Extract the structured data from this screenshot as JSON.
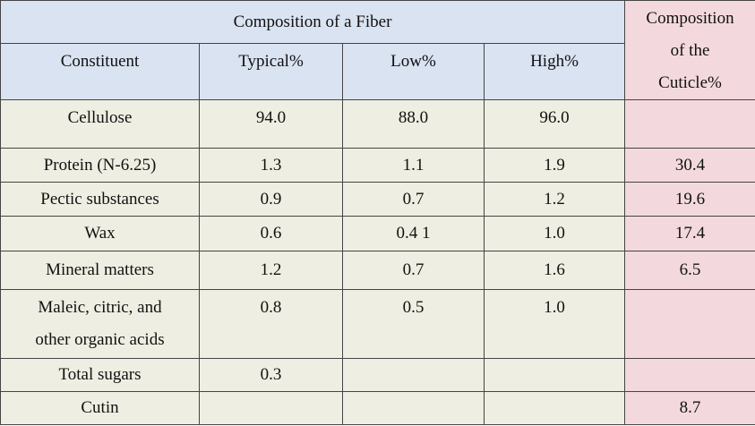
{
  "table": {
    "fiber_header": "Composition of a Fiber",
    "cuticle_header": [
      "Composition",
      "of the",
      "Cuticle%"
    ],
    "columns": [
      "Constituent",
      "Typical%",
      "Low%",
      "High%"
    ],
    "rows": [
      {
        "name": [
          "Cellulose"
        ],
        "typical": "94.0",
        "low": "88.0",
        "high": "96.0",
        "cuticle": ""
      },
      {
        "name": [
          "Protein (N-6.25)"
        ],
        "typical": "1.3",
        "low": "1.1",
        "high": "1.9",
        "cuticle": "30.4"
      },
      {
        "name": [
          "Pectic substances"
        ],
        "typical": "0.9",
        "low": "0.7",
        "high": "1.2",
        "cuticle": "19.6"
      },
      {
        "name": [
          "Wax"
        ],
        "typical": "0.6",
        "low": "0.4 1",
        "high": "1.0",
        "cuticle": "17.4"
      },
      {
        "name": [
          "Mineral matters"
        ],
        "typical": "1.2",
        "low": "0.7",
        "high": "1.6",
        "cuticle": "6.5"
      },
      {
        "name": [
          "Maleic, citric, and",
          "other organic acids"
        ],
        "typical": "0.8",
        "low": "0.5",
        "high": "1.0",
        "cuticle": ""
      },
      {
        "name": [
          "Total sugars"
        ],
        "typical": "0.3",
        "low": "",
        "high": "",
        "cuticle": ""
      },
      {
        "name": [
          "Cutin"
        ],
        "typical": "",
        "low": "",
        "high": "",
        "cuticle": "8.7"
      }
    ]
  }
}
